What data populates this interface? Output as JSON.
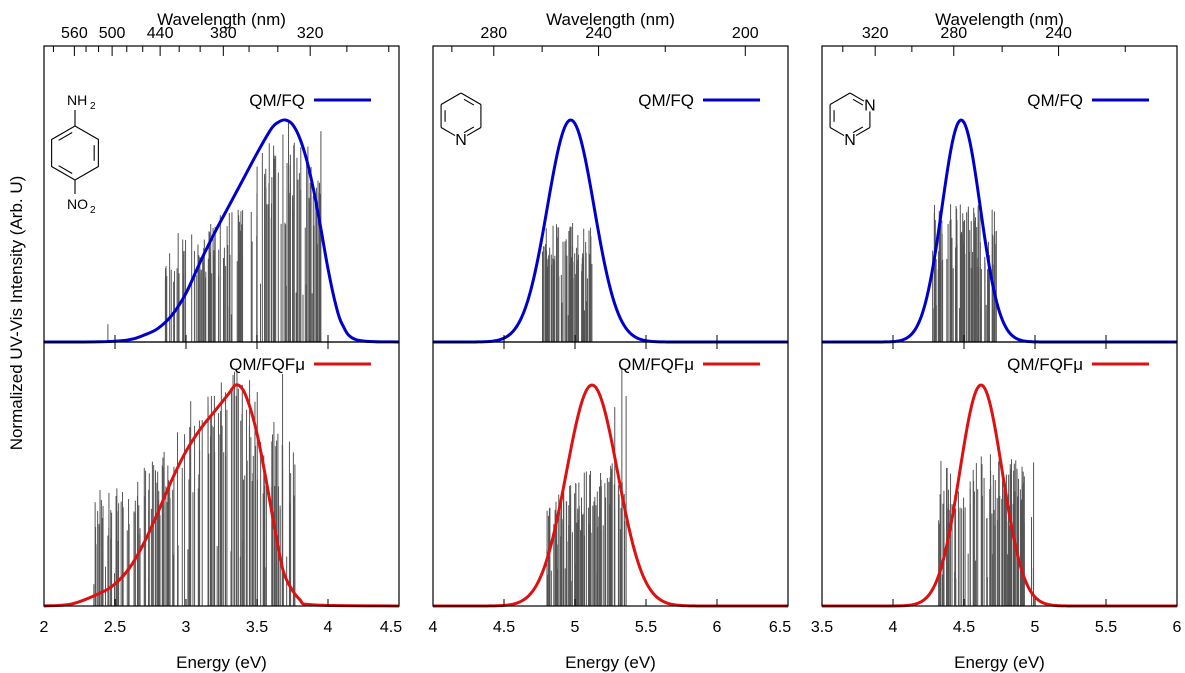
{
  "figure": {
    "ylabel": "Normalized UV-Vis Intensity (Arb. U)",
    "colors": {
      "fq": "#0000cc",
      "fqfmu": "#dd1111",
      "sticks": "#555555"
    }
  },
  "chart_data": [
    {
      "type": "line",
      "panel": "left",
      "xlabel": "Energy (eV)",
      "top_xlabel": "Wavelength (nm)",
      "xlim": [
        2,
        4.5
      ],
      "xticks": [
        2,
        2.5,
        3,
        3.5,
        4,
        4.5
      ],
      "xtick_labels": [
        "2",
        "2.5",
        "3",
        "3.5",
        "4",
        "4.5"
      ],
      "top_ticks": [
        560,
        500,
        440,
        380,
        320
      ],
      "top_tick_labels": [
        "560",
        "500",
        "440",
        "380",
        "320"
      ],
      "top_minor_ticks": [
        600,
        540,
        520,
        480,
        460,
        420,
        400,
        360,
        340,
        300,
        280
      ],
      "molecule": {
        "name": "p-nitroaniline",
        "top_label": "NH",
        "top_sub": "2",
        "bottom_label": "NO",
        "bottom_sub": "2"
      },
      "series": [
        {
          "name": "QM/FQ",
          "color": "#0000cc",
          "subplot": "top",
          "x": [
            2.0,
            2.4,
            2.6,
            2.7,
            2.8,
            2.9,
            3.0,
            3.1,
            3.2,
            3.3,
            3.4,
            3.5,
            3.6,
            3.65,
            3.7,
            3.75,
            3.8,
            3.85,
            3.9,
            3.95,
            4.0,
            4.05,
            4.1,
            4.2,
            4.5
          ],
          "y": [
            0,
            0.001,
            0.01,
            0.03,
            0.06,
            0.12,
            0.22,
            0.36,
            0.49,
            0.61,
            0.73,
            0.85,
            0.96,
            0.99,
            1.0,
            0.98,
            0.92,
            0.82,
            0.68,
            0.51,
            0.33,
            0.18,
            0.08,
            0.01,
            0
          ]
        },
        {
          "name": "QM/FQFμ",
          "color": "#dd1111",
          "subplot": "bottom",
          "x": [
            2.0,
            2.2,
            2.4,
            2.5,
            2.6,
            2.7,
            2.8,
            2.9,
            3.0,
            3.1,
            3.2,
            3.3,
            3.35,
            3.4,
            3.45,
            3.5,
            3.55,
            3.6,
            3.65,
            3.7,
            3.8,
            3.9,
            4.5
          ],
          "y": [
            0,
            0.01,
            0.06,
            0.1,
            0.17,
            0.28,
            0.42,
            0.57,
            0.7,
            0.8,
            0.88,
            0.96,
            1.0,
            0.98,
            0.9,
            0.78,
            0.62,
            0.44,
            0.26,
            0.13,
            0.03,
            0.005,
            0
          ]
        }
      ],
      "sticks": [
        {
          "subplot": "top",
          "x_range": [
            2.85,
            3.95
          ],
          "count": 150,
          "peak": 3.7,
          "width": 0.33,
          "base": 0.48,
          "max": 0.95,
          "extra": [
            [
              2.45,
              0.08
            ],
            [
              3.95,
              0.95
            ]
          ]
        },
        {
          "subplot": "bottom",
          "x_range": [
            2.35,
            3.77
          ],
          "count": 170,
          "peak": 3.3,
          "width": 0.45,
          "base": 0.5,
          "max": 1.05,
          "extra": [
            [
              3.68,
              1.05
            ],
            [
              3.2,
              0.95
            ],
            [
              3.76,
              0.5
            ]
          ]
        }
      ]
    },
    {
      "type": "line",
      "panel": "middle",
      "xlabel": "Energy (eV)",
      "top_xlabel": "Wavelength (nm)",
      "xlim": [
        4,
        6.5
      ],
      "xticks": [
        4,
        4.5,
        5,
        5.5,
        6,
        6.5
      ],
      "xtick_labels": [
        "4",
        "4.5",
        "5",
        "5.5",
        "6",
        "6.5"
      ],
      "top_ticks": [
        280,
        240,
        200
      ],
      "top_tick_labels": [
        "280",
        "240",
        "200"
      ],
      "top_minor_ticks": [
        300,
        260,
        220
      ],
      "molecule": {
        "name": "pyridine",
        "n_label": "N"
      },
      "series": [
        {
          "name": "QM/FQ",
          "color": "#0000cc",
          "subplot": "top",
          "gauss": {
            "center": 4.97,
            "sigma": 0.165
          }
        },
        {
          "name": "QM/FQFμ",
          "color": "#dd1111",
          "subplot": "bottom",
          "gauss": {
            "center": 5.12,
            "sigma": 0.18
          }
        }
      ],
      "sticks": [
        {
          "subplot": "top",
          "x_range": [
            4.77,
            5.13
          ],
          "count": 80,
          "peak": 5.0,
          "width": 0.5,
          "base": 0.43,
          "max": 0.52,
          "extra": []
        },
        {
          "subplot": "bottom",
          "x_range": [
            4.8,
            5.35
          ],
          "count": 110,
          "peak": 5.25,
          "width": 0.4,
          "base": 0.4,
          "max": 0.62,
          "extra": [
            [
              5.33,
              1.08
            ],
            [
              5.28,
              0.9
            ],
            [
              5.36,
              0.95
            ]
          ]
        }
      ]
    },
    {
      "type": "line",
      "panel": "right",
      "xlabel": "Energy (eV)",
      "top_xlabel": "Wavelength (nm)",
      "xlim": [
        3.5,
        6
      ],
      "xticks": [
        3.5,
        4,
        4.5,
        5,
        5.5,
        6
      ],
      "xtick_labels": [
        "3.5",
        "4",
        "4.5",
        "5",
        "5.5",
        "6"
      ],
      "top_ticks": [
        320,
        280,
        240
      ],
      "top_tick_labels": [
        "320",
        "280",
        "240"
      ],
      "top_minor_ticks": [
        340,
        300,
        260,
        220
      ],
      "molecule": {
        "name": "pyrimidine",
        "n_label": "N"
      },
      "series": [
        {
          "name": "QM/FQ",
          "color": "#0000cc",
          "subplot": "top",
          "gauss": {
            "center": 4.48,
            "sigma": 0.135
          }
        },
        {
          "name": "QM/FQFμ",
          "color": "#dd1111",
          "subplot": "bottom",
          "gauss": {
            "center": 4.62,
            "sigma": 0.15
          }
        }
      ],
      "sticks": [
        {
          "subplot": "top",
          "x_range": [
            4.27,
            4.73
          ],
          "count": 100,
          "peak": 4.45,
          "width": 0.5,
          "base": 0.52,
          "max": 0.6,
          "extra": []
        },
        {
          "subplot": "bottom",
          "x_range": [
            4.32,
            4.99
          ],
          "count": 110,
          "peak": 4.6,
          "width": 0.6,
          "base": 0.5,
          "max": 0.66,
          "extra": [
            [
              4.99,
              0.65
            ]
          ]
        }
      ]
    }
  ]
}
